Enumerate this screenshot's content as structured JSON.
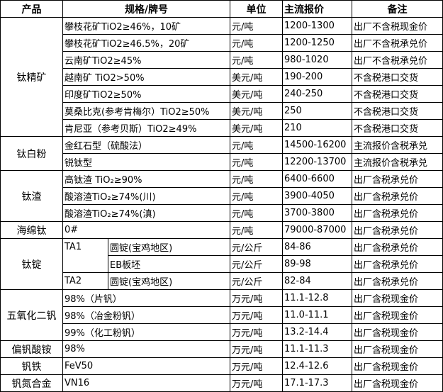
{
  "header": {
    "product": "产品",
    "spec": "规格/牌号",
    "unit": "单位",
    "price": "主流报价",
    "note": "备注"
  },
  "groups": [
    {
      "product": "钛精矿",
      "rows": [
        {
          "spec": "攀枝花矿TiO2≥46%，10矿",
          "unit": "元/吨",
          "price": "1200-1300",
          "note": "出厂不含税现金价"
        },
        {
          "spec": "攀枝花矿TiO2≥46.5%，20矿",
          "unit": "元/吨",
          "price": "1200-1250",
          "note": "出厂不含税承兑价"
        },
        {
          "spec": "云南矿TiO2≥45%",
          "unit": "元/吨",
          "price": "980-1020",
          "note": "出厂不含税承兑价"
        },
        {
          "spec": "越南矿 TiO2>50%",
          "unit": "美元/吨",
          "price": "190-200",
          "note": "不含税港口交货"
        },
        {
          "spec": "印度矿TiO2≥50%",
          "unit": "美元/吨",
          "price": "240-250",
          "note": "不含税港口交货"
        },
        {
          "spec": "莫桑比克(参考肯梅尔）TiO2≥50%",
          "unit": "美元/吨",
          "price": "250",
          "note": "不含税港口交货"
        },
        {
          "spec": "肯尼亚（参考贝斯）TiO2≥49%",
          "unit": "美元/吨",
          "price": "210",
          "note": "不含税港口交货"
        }
      ]
    },
    {
      "product": "钛白粉",
      "rows": [
        {
          "spec": "金红石型（硫酸法）",
          "unit": "元/吨",
          "price": "14500-16200",
          "note": "主流报价含税承兑"
        },
        {
          "spec": "锐钛型",
          "unit": "元/吨",
          "price": "12200-13700",
          "note": "主流报价含税承兑"
        }
      ]
    },
    {
      "product": "钛渣",
      "rows": [
        {
          "spec": "高钛渣 TiO₂≥90%",
          "unit": "元/吨",
          "price": "6400-6600",
          "note": "出厂含税承兑价"
        },
        {
          "spec": "酸溶渣TiO₂≥74%(川)",
          "unit": "元/吨",
          "price": "3900-4050",
          "note": "出厂含税承兑价"
        },
        {
          "spec": "酸溶渣TiO₂≥74%(滇)",
          "unit": "元/吨",
          "price": "3700-3800",
          "note": "出厂含税承兑价"
        }
      ]
    },
    {
      "product": "海绵钛",
      "rows": [
        {
          "spec": "0#",
          "unit": "元/吨",
          "price": "79000-87000",
          "note": "出厂含税承兑价"
        }
      ]
    },
    {
      "product": "钛锭",
      "rows": [
        {
          "grade": "TA1",
          "grade_span": 2,
          "spec": "圆锭(宝鸡地区)",
          "unit": "元/公斤",
          "price": "84-86",
          "note": "出厂含税承兑价"
        },
        {
          "spec": "EB板坯",
          "unit": "元/公斤",
          "price": "89-98",
          "note": "出厂含税承兑价"
        },
        {
          "grade": "TA2",
          "grade_span": 1,
          "spec": "圆锭(宝鸡地区)",
          "unit": "元/公斤",
          "price": "82-84",
          "note": "出厂含税承兑价"
        }
      ]
    },
    {
      "product": "五氧化二钒",
      "rows": [
        {
          "spec": "98%（片钒）",
          "unit": "万元/吨",
          "price": "11.1-12.8",
          "note": "出厂含税现金价"
        },
        {
          "spec": "98%（冶金粉钒）",
          "unit": "万元/吨",
          "price": "11.0-11.1",
          "note": "出厂含税现金价"
        },
        {
          "spec": "99%（化工粉钒）",
          "unit": "万元/吨",
          "price": "13.2-14.4",
          "note": "出厂含税现金价"
        }
      ]
    },
    {
      "product": "偏钒酸铵",
      "rows": [
        {
          "spec": "98%",
          "unit": "万元/吨",
          "price": "11.1-11.3",
          "note": "出厂含税现金价"
        }
      ]
    },
    {
      "product": "钒铁",
      "rows": [
        {
          "spec": "FeV50",
          "unit": "万元/吨",
          "price": "12.4-12.6",
          "note": "出厂含税现金价"
        }
      ]
    },
    {
      "product": "钒氮合金",
      "rows": [
        {
          "spec": "VN16",
          "unit": "万元/吨",
          "price": "17.1-17.3",
          "note": "出厂含税现金价"
        }
      ]
    }
  ]
}
